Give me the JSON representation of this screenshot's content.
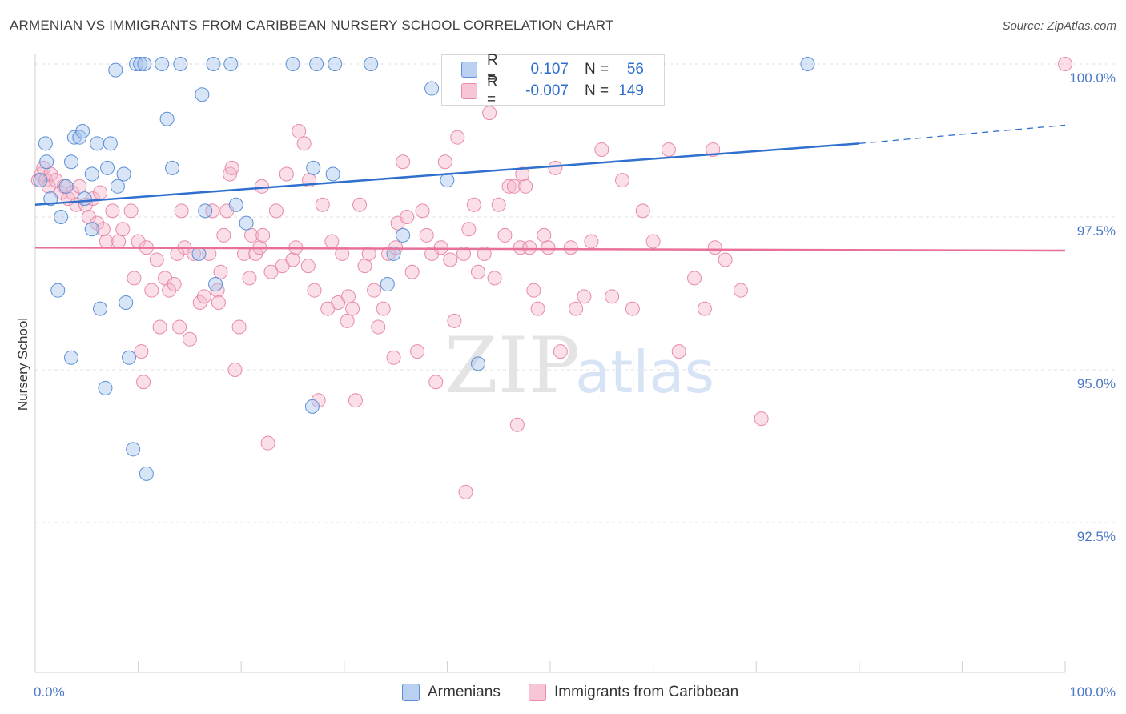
{
  "title": "ARMENIAN VS IMMIGRANTS FROM CARIBBEAN NURSERY SCHOOL CORRELATION CHART",
  "source": "Source: ZipAtlas.com",
  "watermark_zip": "ZIP",
  "watermark_atlas": "atlas",
  "legend": {
    "row1": {
      "r_label": "R =",
      "r_value": "0.107",
      "n_label": "N =",
      "n_value": "56"
    },
    "row2": {
      "r_label": "R =",
      "r_value": "-0.007",
      "n_label": "N =",
      "n_value": "149"
    }
  },
  "bottom_legend": {
    "armenians": "Armenians",
    "caribbean": "Immigrants from Caribbean"
  },
  "colors": {
    "blue_fill": "#a9c6ee",
    "blue_stroke": "#5d8fd6",
    "blue_line": "#2f6fce",
    "pink_fill": "#f5b8cb",
    "pink_stroke": "#e88aa8",
    "pink_line": "#e8709a",
    "tick_text": "#4a78c8",
    "grid": "#e0e0e0"
  },
  "chart_data": {
    "type": "scatter",
    "title": "ARMENIAN VS IMMIGRANTS FROM CARIBBEAN NURSERY SCHOOL CORRELATION CHART",
    "xlabel": "",
    "ylabel": "Nursery School",
    "xlim": [
      0,
      100
    ],
    "ylim": [
      90.0,
      100.5
    ],
    "x_tick_labels": [
      "0.0%",
      "100.0%"
    ],
    "y_ticks": [
      100.0,
      97.5,
      95.0,
      92.5
    ],
    "y_tick_labels": [
      "100.0%",
      "97.5%",
      "95.0%",
      "92.5%"
    ],
    "series": [
      {
        "name": "Armenians",
        "r": 0.107,
        "n": 56,
        "trend": {
          "x0": 0,
          "y0": 97.7,
          "x1": 80,
          "y1": 98.7,
          "dash_to_x": 100,
          "dash_to_y": 99.0
        },
        "points": [
          [
            0.5,
            98.1
          ],
          [
            1.0,
            98.7
          ],
          [
            1.1,
            98.4
          ],
          [
            1.5,
            97.8
          ],
          [
            2.2,
            96.3
          ],
          [
            2.5,
            97.5
          ],
          [
            3.0,
            98.0
          ],
          [
            3.5,
            98.4
          ],
          [
            3.5,
            95.2
          ],
          [
            3.8,
            98.8
          ],
          [
            4.3,
            98.8
          ],
          [
            4.6,
            98.9
          ],
          [
            4.8,
            97.8
          ],
          [
            5.5,
            98.2
          ],
          [
            5.5,
            97.3
          ],
          [
            6.0,
            98.7
          ],
          [
            6.3,
            96.0
          ],
          [
            6.8,
            94.7
          ],
          [
            7.0,
            98.3
          ],
          [
            7.3,
            98.7
          ],
          [
            7.8,
            99.9
          ],
          [
            8.6,
            98.2
          ],
          [
            8.8,
            96.1
          ],
          [
            9.1,
            95.2
          ],
          [
            9.5,
            93.7
          ],
          [
            9.8,
            100.0
          ],
          [
            10.2,
            100.0
          ],
          [
            10.6,
            100.0
          ],
          [
            10.8,
            93.3
          ],
          [
            12.3,
            100.0
          ],
          [
            12.8,
            99.1
          ],
          [
            13.3,
            98.3
          ],
          [
            14.1,
            100.0
          ],
          [
            15.9,
            96.9
          ],
          [
            16.5,
            97.6
          ],
          [
            17.3,
            100.0
          ],
          [
            17.5,
            96.4
          ],
          [
            19.0,
            100.0
          ],
          [
            19.5,
            97.7
          ],
          [
            25.0,
            100.0
          ],
          [
            26.9,
            94.4
          ],
          [
            27.0,
            98.3
          ],
          [
            27.3,
            100.0
          ],
          [
            28.9,
            98.2
          ],
          [
            29.1,
            100.0
          ],
          [
            32.6,
            100.0
          ],
          [
            34.2,
            96.4
          ],
          [
            34.8,
            96.9
          ],
          [
            35.7,
            97.2
          ],
          [
            38.5,
            99.6
          ],
          [
            40.0,
            98.1
          ],
          [
            43.0,
            95.1
          ],
          [
            75.0,
            100.0
          ],
          [
            16.2,
            99.5
          ],
          [
            20.5,
            97.4
          ],
          [
            8.0,
            98.0
          ]
        ]
      },
      {
        "name": "Immigrants from Caribbean",
        "r": -0.007,
        "n": 149,
        "trend": {
          "x0": 0,
          "y0": 97.0,
          "x1": 100,
          "y1": 96.95
        },
        "points": [
          [
            0.3,
            98.1
          ],
          [
            0.6,
            98.2
          ],
          [
            0.8,
            98.3
          ],
          [
            1.0,
            98.1
          ],
          [
            1.3,
            98.0
          ],
          [
            1.5,
            98.2
          ],
          [
            2.0,
            98.1
          ],
          [
            2.5,
            97.9
          ],
          [
            2.8,
            98.0
          ],
          [
            3.2,
            97.8
          ],
          [
            3.6,
            97.9
          ],
          [
            4.0,
            97.7
          ],
          [
            4.3,
            98.0
          ],
          [
            4.9,
            97.7
          ],
          [
            5.2,
            97.5
          ],
          [
            5.6,
            97.8
          ],
          [
            6.0,
            97.4
          ],
          [
            6.3,
            97.9
          ],
          [
            6.6,
            97.3
          ],
          [
            6.9,
            97.1
          ],
          [
            7.5,
            97.6
          ],
          [
            8.1,
            97.1
          ],
          [
            8.5,
            97.3
          ],
          [
            9.3,
            97.6
          ],
          [
            9.6,
            96.5
          ],
          [
            10.0,
            97.1
          ],
          [
            10.3,
            95.3
          ],
          [
            10.8,
            97.0
          ],
          [
            11.3,
            96.3
          ],
          [
            11.8,
            96.8
          ],
          [
            12.1,
            95.7
          ],
          [
            12.6,
            96.5
          ],
          [
            13.0,
            96.3
          ],
          [
            13.5,
            96.4
          ],
          [
            14.0,
            95.7
          ],
          [
            14.2,
            97.6
          ],
          [
            14.5,
            97.0
          ],
          [
            15.0,
            95.5
          ],
          [
            15.4,
            96.9
          ],
          [
            16.0,
            96.1
          ],
          [
            16.4,
            96.2
          ],
          [
            16.9,
            96.9
          ],
          [
            17.2,
            97.6
          ],
          [
            17.7,
            96.3
          ],
          [
            17.8,
            96.1
          ],
          [
            18.3,
            97.2
          ],
          [
            18.6,
            97.6
          ],
          [
            18.9,
            98.2
          ],
          [
            19.1,
            98.3
          ],
          [
            19.4,
            95.0
          ],
          [
            19.8,
            95.7
          ],
          [
            20.3,
            96.9
          ],
          [
            20.8,
            96.5
          ],
          [
            21.0,
            97.2
          ],
          [
            21.4,
            96.9
          ],
          [
            21.8,
            97.0
          ],
          [
            22.1,
            97.2
          ],
          [
            22.6,
            93.8
          ],
          [
            22.9,
            96.6
          ],
          [
            23.4,
            97.6
          ],
          [
            24.0,
            96.7
          ],
          [
            24.4,
            98.2
          ],
          [
            25.0,
            96.8
          ],
          [
            25.3,
            97.0
          ],
          [
            25.6,
            98.9
          ],
          [
            26.1,
            98.7
          ],
          [
            26.6,
            98.1
          ],
          [
            27.1,
            96.3
          ],
          [
            27.5,
            94.5
          ],
          [
            27.9,
            97.7
          ],
          [
            28.4,
            96.0
          ],
          [
            28.8,
            97.1
          ],
          [
            29.4,
            96.1
          ],
          [
            29.8,
            96.9
          ],
          [
            30.3,
            95.8
          ],
          [
            30.8,
            96.0
          ],
          [
            31.1,
            94.5
          ],
          [
            31.5,
            97.7
          ],
          [
            32.0,
            96.7
          ],
          [
            32.4,
            96.9
          ],
          [
            32.9,
            96.3
          ],
          [
            33.3,
            95.7
          ],
          [
            33.8,
            96.0
          ],
          [
            34.3,
            96.9
          ],
          [
            34.8,
            95.2
          ],
          [
            35.2,
            97.4
          ],
          [
            35.7,
            98.4
          ],
          [
            36.1,
            97.5
          ],
          [
            36.6,
            96.6
          ],
          [
            37.1,
            95.3
          ],
          [
            37.6,
            97.6
          ],
          [
            38.0,
            97.2
          ],
          [
            38.5,
            96.9
          ],
          [
            38.9,
            94.8
          ],
          [
            39.4,
            97.0
          ],
          [
            39.8,
            98.4
          ],
          [
            40.3,
            96.8
          ],
          [
            40.7,
            95.8
          ],
          [
            41.0,
            98.8
          ],
          [
            41.6,
            96.9
          ],
          [
            42.1,
            97.3
          ],
          [
            42.6,
            97.7
          ],
          [
            43.0,
            96.6
          ],
          [
            43.6,
            96.9
          ],
          [
            44.1,
            99.2
          ],
          [
            44.6,
            96.5
          ],
          [
            45.0,
            97.7
          ],
          [
            45.6,
            97.2
          ],
          [
            46.0,
            98.0
          ],
          [
            46.5,
            98.0
          ],
          [
            47.1,
            97.0
          ],
          [
            47.6,
            98.0
          ],
          [
            48.0,
            97.0
          ],
          [
            48.4,
            96.3
          ],
          [
            48.8,
            96.0
          ],
          [
            49.4,
            97.2
          ],
          [
            49.8,
            97.0
          ],
          [
            50.5,
            98.3
          ],
          [
            51.0,
            95.3
          ],
          [
            52.0,
            97.0
          ],
          [
            52.5,
            96.0
          ],
          [
            53.3,
            96.2
          ],
          [
            54.0,
            97.1
          ],
          [
            55.0,
            98.6
          ],
          [
            56.0,
            96.2
          ],
          [
            57.0,
            98.1
          ],
          [
            58.0,
            96.0
          ],
          [
            59.0,
            97.6
          ],
          [
            60.0,
            97.1
          ],
          [
            61.5,
            98.6
          ],
          [
            62.5,
            95.3
          ],
          [
            64.0,
            96.5
          ],
          [
            65.0,
            96.0
          ],
          [
            66.0,
            97.0
          ],
          [
            67.0,
            96.8
          ],
          [
            68.5,
            96.3
          ],
          [
            65.8,
            98.6
          ],
          [
            70.5,
            94.2
          ],
          [
            18.0,
            96.6
          ],
          [
            46.8,
            94.1
          ],
          [
            30.4,
            96.2
          ],
          [
            10.5,
            94.8
          ],
          [
            41.8,
            93.0
          ],
          [
            26.5,
            96.7
          ],
          [
            13.8,
            96.9
          ],
          [
            22.0,
            98.0
          ],
          [
            35.0,
            97.0
          ],
          [
            47.3,
            98.2
          ],
          [
            100.0,
            100.0
          ]
        ]
      }
    ]
  }
}
